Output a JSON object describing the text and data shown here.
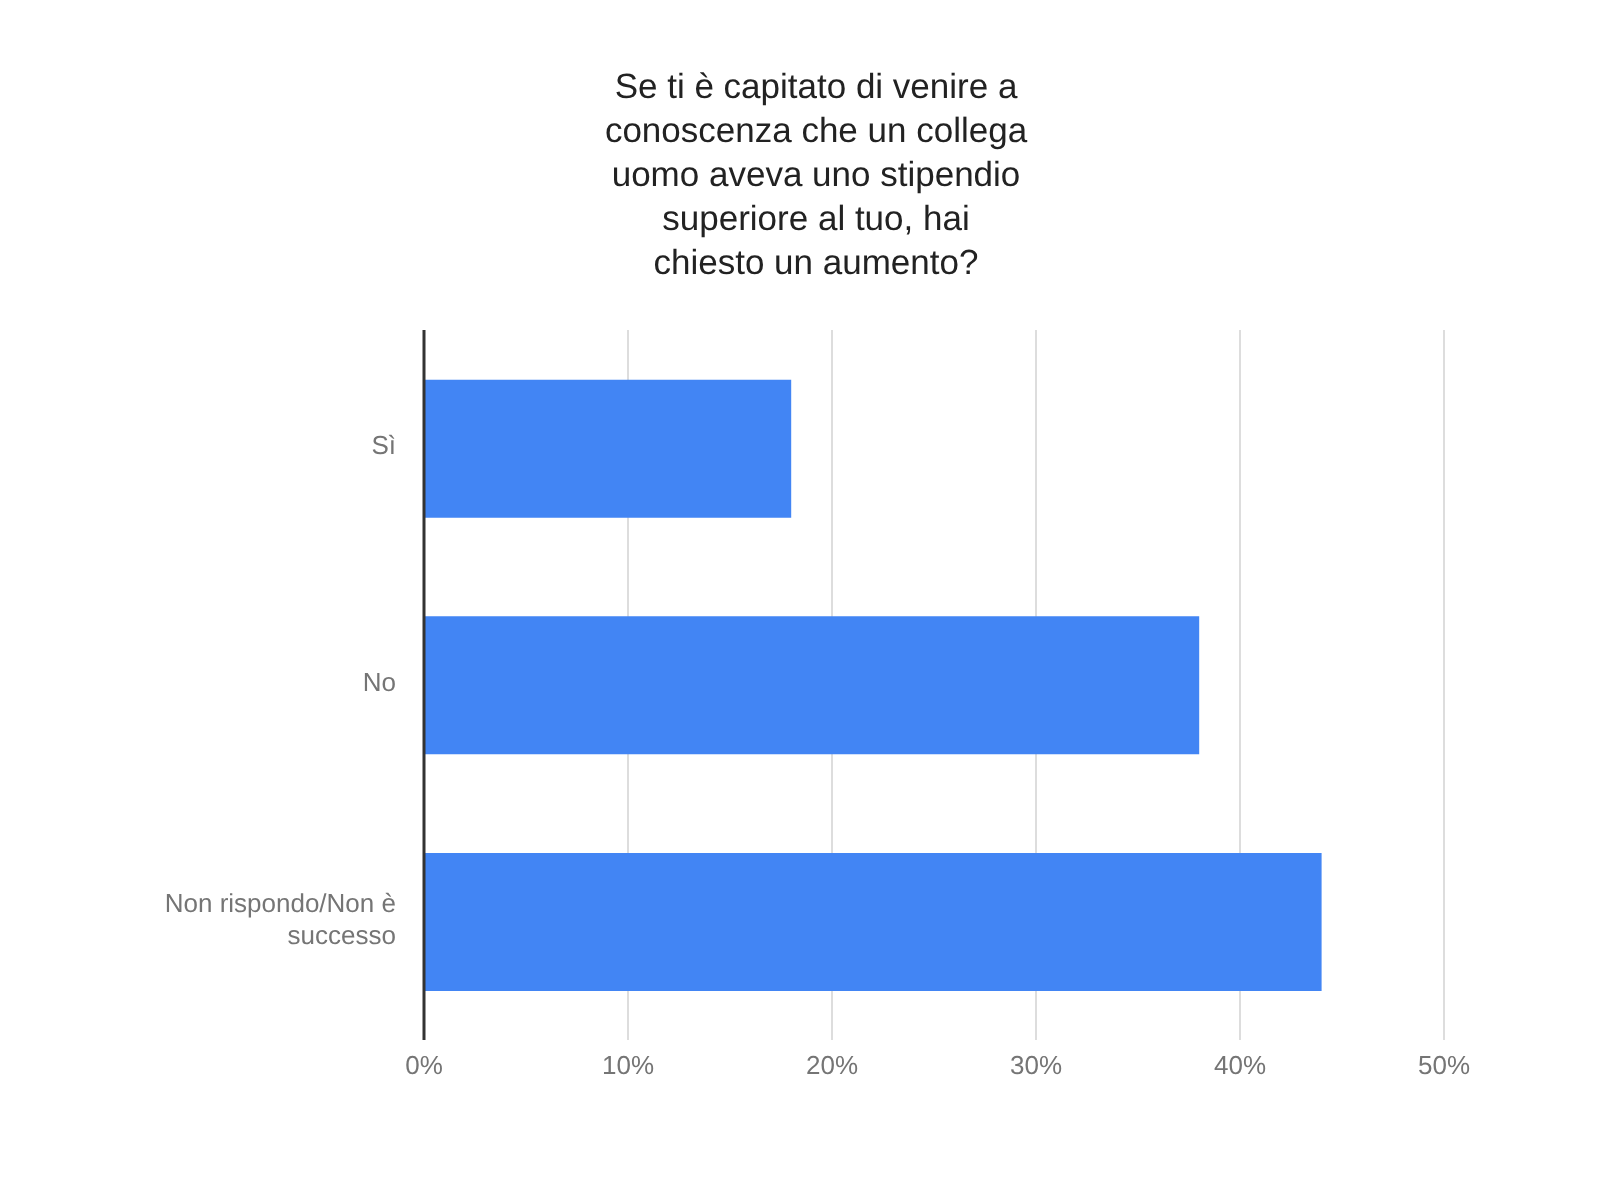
{
  "chart_data": {
    "type": "bar",
    "orientation": "horizontal",
    "title": "Se ti è capitato di venire a\nconoscenza che un collega\nuomo aveva uno stipendio\nsuperiore al tuo, hai\nchiesto un aumento?",
    "categories": [
      "Sì",
      "No",
      "Non rispondo/Non è successo"
    ],
    "values": [
      18,
      38,
      44
    ],
    "color": "#4285f4",
    "xlim": [
      0,
      50
    ],
    "xticks": [
      {
        "value": 0,
        "label": "0%"
      },
      {
        "value": 10,
        "label": "10%"
      },
      {
        "value": 20,
        "label": "20%"
      },
      {
        "value": 30,
        "label": "30%"
      },
      {
        "value": 40,
        "label": "40%"
      },
      {
        "value": 50,
        "label": "50%"
      }
    ],
    "grid": "x",
    "legend": false
  }
}
